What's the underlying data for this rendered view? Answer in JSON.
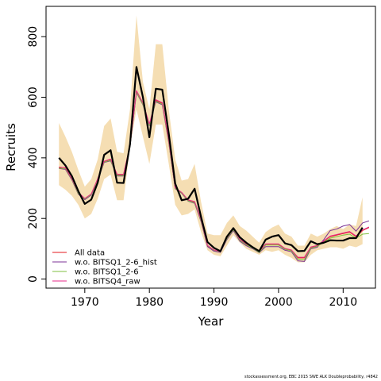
{
  "chart_data": {
    "type": "line",
    "xlabel": "Year",
    "ylabel": "Recruits",
    "xlim": [
      1964,
      2015
    ],
    "ylim": [
      -30,
      900
    ],
    "x_ticks": [
      1970,
      1980,
      1990,
      2000,
      2010
    ],
    "y_ticks": [
      0,
      200,
      400,
      600,
      800
    ],
    "x": [
      1966,
      1967,
      1968,
      1969,
      1970,
      1971,
      1972,
      1973,
      1974,
      1975,
      1976,
      1977,
      1978,
      1979,
      1980,
      1981,
      1982,
      1983,
      1984,
      1985,
      1986,
      1987,
      1988,
      1989,
      1990,
      1991,
      1992,
      1993,
      1994,
      1995,
      1996,
      1997,
      1998,
      1999,
      2000,
      2001,
      2002,
      2003,
      2004,
      2005,
      2006,
      2007,
      2008,
      2009,
      2010,
      2011,
      2012,
      2013,
      2014
    ],
    "confidence_band": {
      "color": "#F5DEB3",
      "lower": [
        310,
        295,
        275,
        245,
        200,
        215,
        265,
        330,
        345,
        260,
        260,
        435,
        560,
        470,
        380,
        510,
        510,
        380,
        245,
        210,
        215,
        230,
        155,
        95,
        80,
        75,
        110,
        145,
        120,
        100,
        90,
        80,
        95,
        90,
        95,
        80,
        70,
        55,
        55,
        80,
        95,
        100,
        105,
        105,
        100,
        110,
        105,
        115,
        null
      ],
      "upper": [
        515,
        470,
        420,
        360,
        305,
        330,
        395,
        505,
        530,
        420,
        415,
        560,
        870,
        650,
        560,
        775,
        775,
        560,
        395,
        325,
        330,
        380,
        255,
        150,
        145,
        145,
        185,
        210,
        175,
        160,
        140,
        120,
        155,
        170,
        180,
        150,
        140,
        110,
        110,
        150,
        140,
        150,
        165,
        175,
        165,
        180,
        175,
        270,
        null
      ]
    },
    "series": [
      {
        "name": "",
        "color": "#000000",
        "width": 2.2,
        "values": [
          400,
          375,
          340,
          290,
          248,
          262,
          318,
          410,
          425,
          318,
          317,
          445,
          700,
          600,
          468,
          628,
          625,
          480,
          315,
          260,
          265,
          298,
          205,
          122,
          103,
          92,
          140,
          168,
          138,
          120,
          105,
          92,
          130,
          140,
          145,
          118,
          112,
          92,
          93,
          125,
          115,
          120,
          128,
          127,
          127,
          135,
          135,
          170,
          null
        ]
      },
      {
        "name": "All data",
        "color": "#E41A1C",
        "width": 1,
        "values": [
          368,
          368,
          330,
          285,
          265,
          280,
          330,
          388,
          395,
          345,
          345,
          440,
          620,
          580,
          510,
          590,
          580,
          455,
          300,
          285,
          260,
          255,
          195,
          110,
          95,
          90,
          135,
          165,
          130,
          115,
          105,
          90,
          115,
          115,
          115,
          100,
          95,
          70,
          70,
          105,
          110,
          125,
          140,
          145,
          150,
          155,
          140,
          160,
          170
        ]
      },
      {
        "name": "w.o. BITSQ1_2-6_hist",
        "color": "#7B3294",
        "width": 1,
        "values": [
          365,
          362,
          327,
          280,
          262,
          277,
          325,
          385,
          390,
          340,
          340,
          437,
          615,
          575,
          505,
          585,
          575,
          450,
          298,
          283,
          257,
          250,
          190,
          107,
          92,
          88,
          130,
          160,
          125,
          110,
          100,
          87,
          107,
          107,
          107,
          95,
          90,
          60,
          58,
          100,
          105,
          130,
          160,
          165,
          175,
          180,
          158,
          185,
          192
        ]
      },
      {
        "name": "w.o. BITSQ1_2-6",
        "color": "#7FBF3F",
        "width": 1,
        "values": [
          366,
          364,
          329,
          282,
          264,
          279,
          327,
          386,
          392,
          342,
          342,
          438,
          617,
          577,
          507,
          587,
          577,
          452,
          299,
          284,
          258,
          252,
          193,
          110,
          95,
          90,
          133,
          163,
          128,
          113,
          102,
          88,
          112,
          112,
          112,
          98,
          93,
          66,
          64,
          102,
          108,
          122,
          135,
          140,
          145,
          148,
          135,
          148,
          150
        ]
      },
      {
        "name": "w.o. BITSQ4_raw",
        "color": "#E7298A",
        "width": 1,
        "values": [
          370,
          367,
          331,
          286,
          266,
          281,
          331,
          389,
          396,
          346,
          346,
          441,
          622,
          582,
          512,
          592,
          582,
          457,
          301,
          286,
          261,
          256,
          196,
          111,
          96,
          91,
          136,
          166,
          131,
          116,
          106,
          91,
          116,
          116,
          116,
          101,
          96,
          72,
          72,
          106,
          111,
          126,
          142,
          147,
          152,
          157,
          142,
          162,
          172
        ]
      }
    ],
    "legend": {
      "position": "bottom-left"
    }
  },
  "footer_text": "stockassessment.org, EBC 2015 SWE ALK Doubleprobability, r4842"
}
